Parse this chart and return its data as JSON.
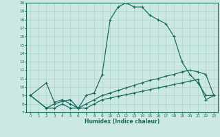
{
  "xlabel": "Humidex (Indice chaleur)",
  "bg_color": "#cce8e4",
  "grid_color": "#aad4ce",
  "line_color": "#1a6b5a",
  "xlim": [
    -0.5,
    23.5
  ],
  "ylim": [
    7,
    20
  ],
  "xticks": [
    0,
    1,
    2,
    3,
    4,
    5,
    6,
    7,
    8,
    9,
    10,
    11,
    12,
    13,
    14,
    15,
    16,
    17,
    18,
    19,
    20,
    21,
    22,
    23
  ],
  "yticks": [
    7,
    8,
    9,
    10,
    11,
    12,
    13,
    14,
    15,
    16,
    17,
    18,
    19,
    20
  ],
  "curve1_x": [
    0,
    2,
    3,
    4,
    5,
    6,
    7,
    8,
    9,
    10,
    11,
    12,
    13,
    14,
    15,
    16,
    17,
    18,
    19,
    20,
    21,
    22,
    23
  ],
  "curve1_y": [
    9,
    10.5,
    8.2,
    8.5,
    8.0,
    7.5,
    9.0,
    9.3,
    11.5,
    18.0,
    19.5,
    20.0,
    19.5,
    19.5,
    18.5,
    18.0,
    17.5,
    16.0,
    13.0,
    11.5,
    10.5,
    9.0,
    9.0
  ],
  "curve2_x": [
    0,
    2,
    3,
    4,
    5,
    6,
    7,
    8,
    9,
    10,
    11,
    12,
    13,
    14,
    15,
    16,
    17,
    18,
    19,
    20,
    21,
    22,
    23
  ],
  "curve2_y": [
    9,
    7.5,
    8.0,
    8.3,
    8.5,
    7.5,
    8.0,
    8.5,
    9.0,
    9.3,
    9.6,
    9.9,
    10.2,
    10.5,
    10.8,
    11.0,
    11.3,
    11.5,
    11.8,
    12.0,
    11.8,
    11.5,
    9.0
  ],
  "curve3_x": [
    0,
    2,
    3,
    4,
    5,
    6,
    7,
    8,
    9,
    10,
    11,
    12,
    13,
    14,
    15,
    16,
    17,
    18,
    19,
    20,
    21,
    22,
    23
  ],
  "curve3_y": [
    9,
    7.5,
    7.5,
    8.0,
    7.5,
    7.5,
    7.5,
    8.0,
    8.5,
    8.7,
    8.9,
    9.1,
    9.3,
    9.5,
    9.7,
    9.9,
    10.1,
    10.3,
    10.5,
    10.7,
    10.9,
    8.5,
    9.0
  ]
}
